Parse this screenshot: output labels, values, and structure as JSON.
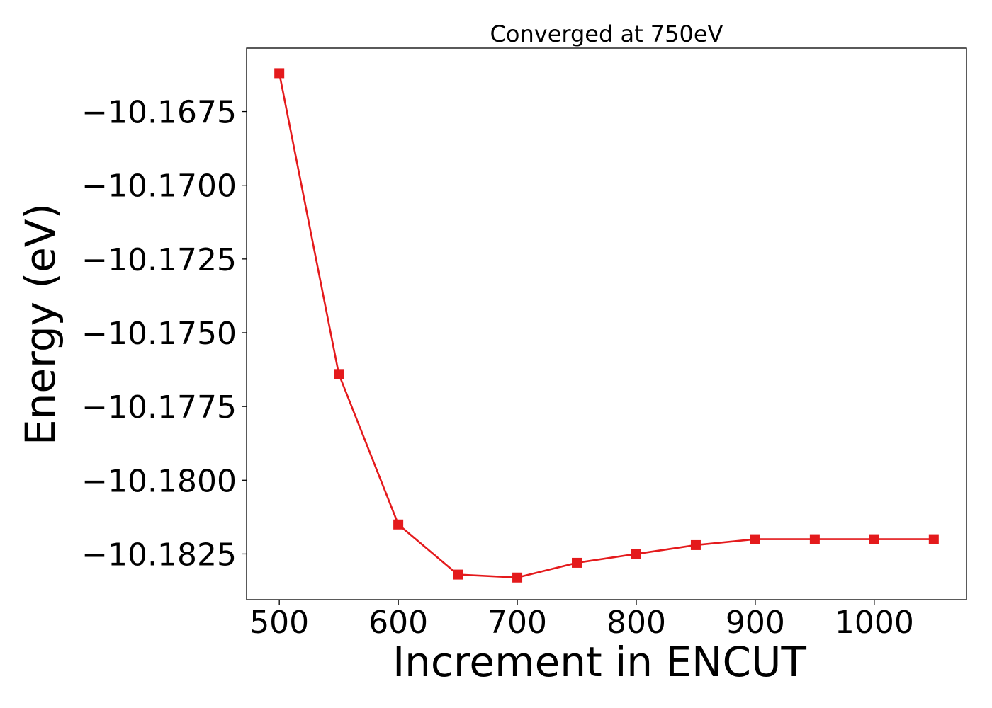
{
  "chart_data": {
    "type": "line",
    "title": "Converged at 750eV",
    "xlabel": "Increment in ENCUT",
    "ylabel": "Energy (eV)",
    "x": [
      500,
      550,
      600,
      650,
      700,
      750,
      800,
      850,
      900,
      950,
      1000,
      1050
    ],
    "series": [
      {
        "name": "",
        "values": [
          -10.1662,
          -10.1764,
          -10.1815,
          -10.1832,
          -10.1833,
          -10.1828,
          -10.1825,
          -10.1822,
          -10.182,
          -10.182,
          -10.182,
          -10.182
        ],
        "color": "#e41a1c",
        "marker": "square"
      }
    ],
    "xlim": [
      472.5,
      1077.5
    ],
    "ylim": [
      -10.18405,
      -10.16535
    ],
    "xticks": [
      500,
      600,
      700,
      800,
      900,
      1000
    ],
    "xtick_labels": [
      "500",
      "600",
      "700",
      "800",
      "900",
      "1000"
    ],
    "yticks": [
      -10.1825,
      -10.18,
      -10.1775,
      -10.175,
      -10.1725,
      -10.17,
      -10.1675
    ],
    "ytick_labels": [
      "−10.1825",
      "−10.1800",
      "−10.1775",
      "−10.1750",
      "−10.1725",
      "−10.1700",
      "−10.1675"
    ],
    "grid": false,
    "legend": "none"
  }
}
